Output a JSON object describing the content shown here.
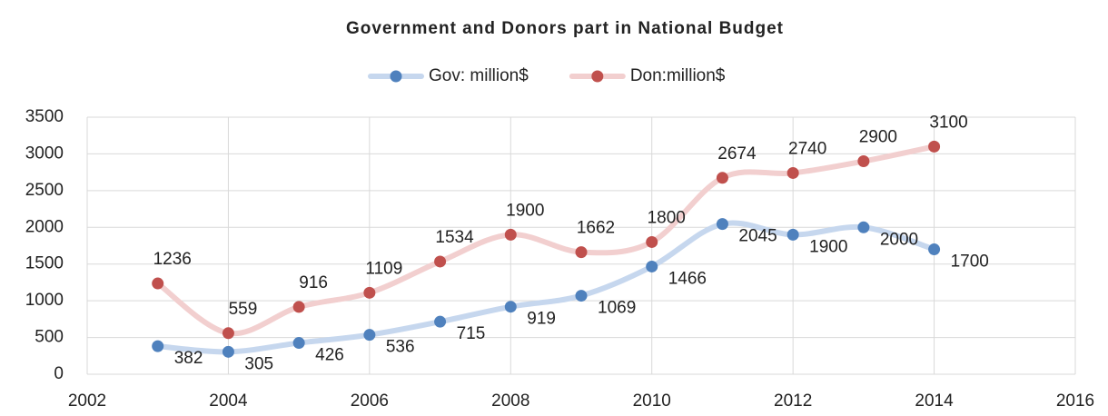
{
  "chart_data": {
    "type": "scatter",
    "title": "Government and Donors part in National Budget",
    "x": [
      2003,
      2004,
      2005,
      2006,
      2007,
      2008,
      2009,
      2010,
      2011,
      2012,
      2013,
      2014
    ],
    "series": [
      {
        "name": "Gov: million$",
        "color": "#4f81bd",
        "line_color": "#c6d7ee",
        "values": [
          382,
          305,
          426,
          536,
          715,
          919,
          1069,
          1466,
          2045,
          1900,
          2000,
          1700
        ]
      },
      {
        "name": "Don:million$",
        "color": "#c0504d",
        "line_color": "#f2cfcf",
        "values": [
          1236,
          559,
          916,
          1109,
          1534,
          1900,
          1662,
          1800,
          2674,
          2740,
          2900,
          3100
        ]
      }
    ],
    "xlim": [
      2002,
      2016
    ],
    "xticks": [
      2002,
      2004,
      2006,
      2008,
      2010,
      2012,
      2014,
      2016
    ],
    "ylim": [
      0,
      3500
    ],
    "yticks": [
      0,
      500,
      1000,
      1500,
      2000,
      2500,
      3000,
      3500
    ],
    "grid": true,
    "legend": "top"
  }
}
